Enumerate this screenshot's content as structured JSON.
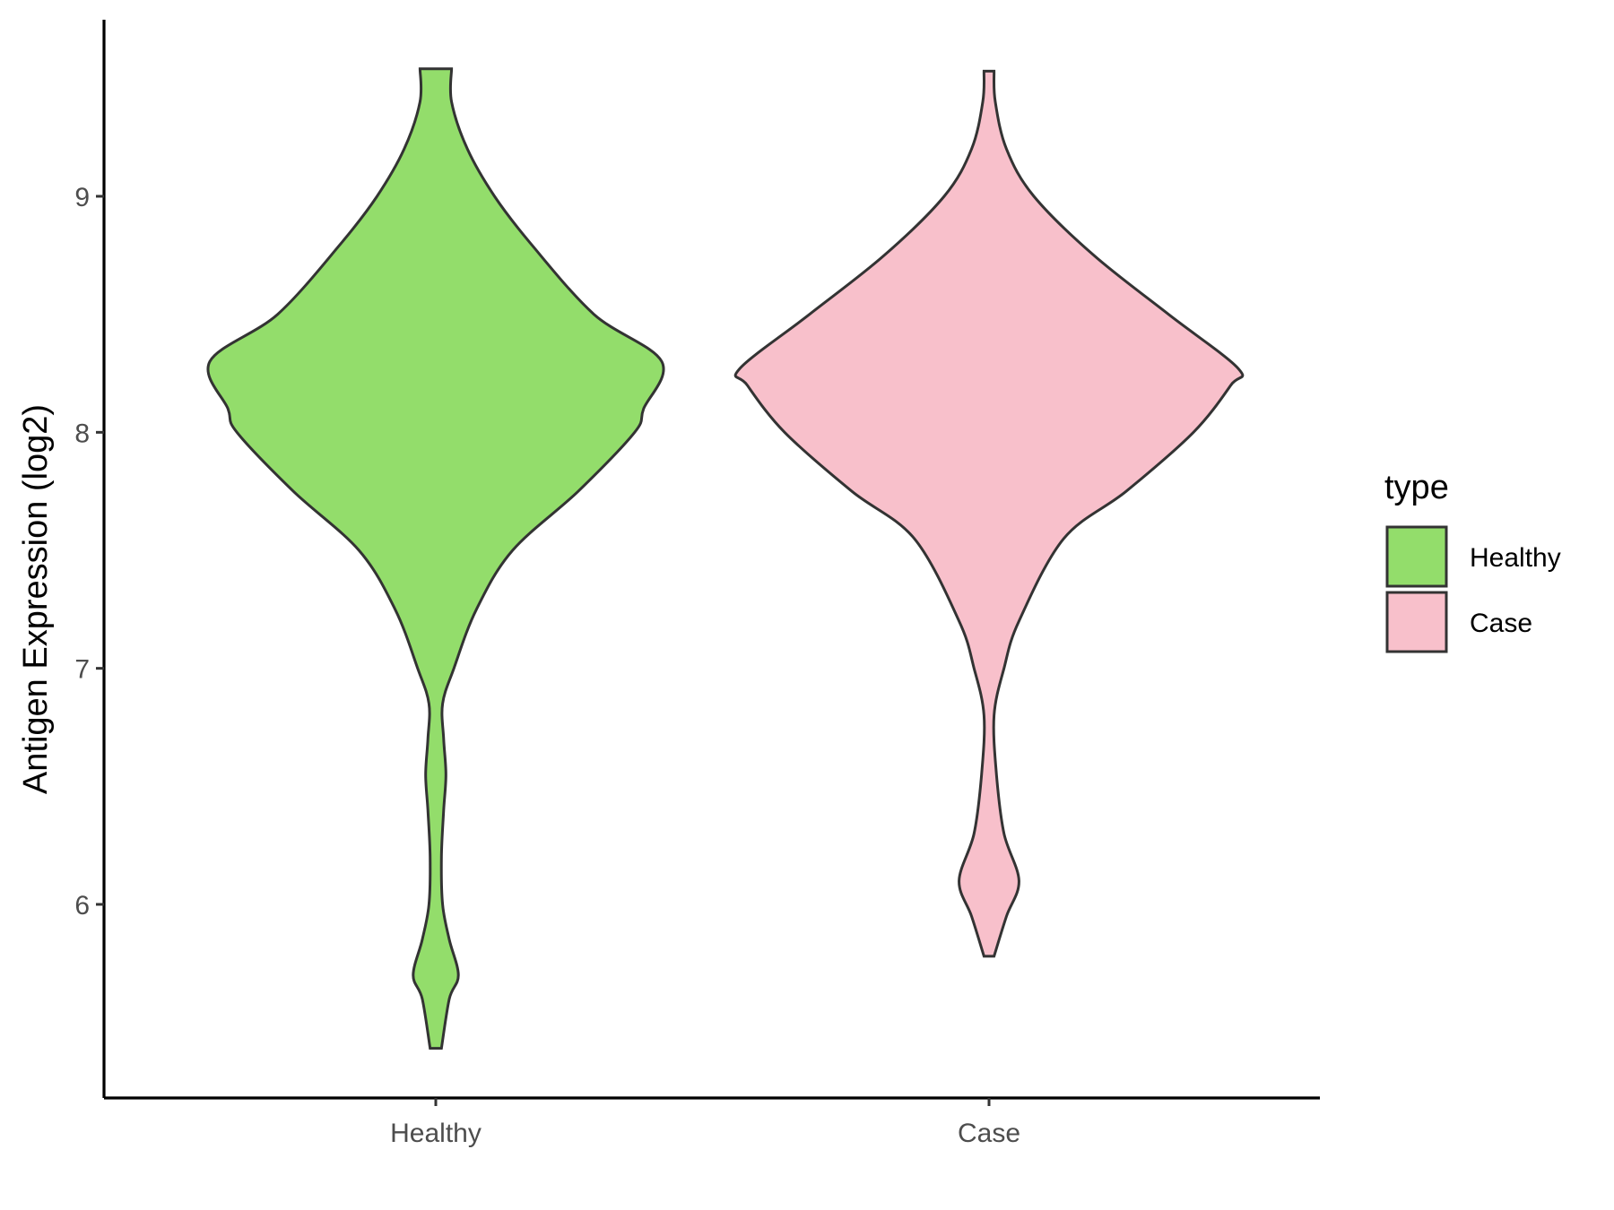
{
  "chart_data": {
    "type": "violin",
    "title": "",
    "xlabel": "",
    "ylabel": "Antigen Expression (log2)",
    "categories": [
      "Healthy",
      "Case"
    ],
    "y_ticks": [
      6,
      7,
      8,
      9
    ],
    "ylim": [
      5.2,
      9.75
    ],
    "grid": false,
    "legend": {
      "title": "type",
      "position": "right",
      "entries": [
        {
          "label": "Healthy",
          "color": "#93DD6B"
        },
        {
          "label": "Case",
          "color": "#F8C0CB"
        }
      ]
    },
    "series": [
      {
        "name": "Healthy",
        "color": "#93DD6B",
        "y_min": 5.39,
        "y_max": 9.54,
        "density_profile": [
          [
            5.39,
            0.025
          ],
          [
            5.6,
            0.06
          ],
          [
            5.7,
            0.1
          ],
          [
            5.85,
            0.06
          ],
          [
            6.0,
            0.03
          ],
          [
            6.2,
            0.025
          ],
          [
            6.4,
            0.035
          ],
          [
            6.55,
            0.045
          ],
          [
            6.7,
            0.035
          ],
          [
            6.85,
            0.03
          ],
          [
            7.0,
            0.08
          ],
          [
            7.25,
            0.18
          ],
          [
            7.5,
            0.34
          ],
          [
            7.75,
            0.63
          ],
          [
            8.0,
            0.88
          ],
          [
            8.1,
            0.92
          ],
          [
            8.3,
            1.0
          ],
          [
            8.5,
            0.7
          ],
          [
            8.8,
            0.42
          ],
          [
            9.0,
            0.26
          ],
          [
            9.2,
            0.14
          ],
          [
            9.4,
            0.07
          ],
          [
            9.54,
            0.07
          ]
        ]
      },
      {
        "name": "Case",
        "color": "#F8C0CB",
        "y_min": 5.78,
        "y_max": 9.53,
        "density_profile": [
          [
            5.78,
            0.02
          ],
          [
            5.95,
            0.07
          ],
          [
            6.1,
            0.12
          ],
          [
            6.3,
            0.06
          ],
          [
            6.55,
            0.03
          ],
          [
            6.8,
            0.02
          ],
          [
            7.0,
            0.06
          ],
          [
            7.2,
            0.12
          ],
          [
            7.55,
            0.3
          ],
          [
            7.75,
            0.55
          ],
          [
            8.0,
            0.82
          ],
          [
            8.2,
            0.97
          ],
          [
            8.27,
            1.0
          ],
          [
            8.5,
            0.72
          ],
          [
            8.75,
            0.42
          ],
          [
            9.0,
            0.18
          ],
          [
            9.2,
            0.07
          ],
          [
            9.4,
            0.025
          ],
          [
            9.53,
            0.02
          ]
        ]
      }
    ]
  }
}
